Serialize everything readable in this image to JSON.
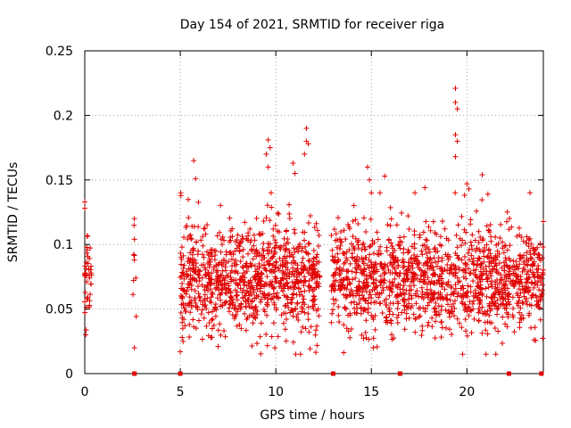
{
  "chart_data": {
    "type": "scatter",
    "title": "Day 154 of 2021, SRMTID for receiver riga",
    "xlabel": "GPS time / hours",
    "ylabel": "SRMTID / TECUs",
    "xlim": [
      0,
      24
    ],
    "ylim": [
      0,
      0.25
    ],
    "xticks": [
      0,
      5,
      10,
      15,
      20
    ],
    "xtick_labels": [
      "0",
      "5",
      "10",
      "15",
      "20"
    ],
    "yticks": [
      0,
      0.05,
      0.1,
      0.15,
      0.2,
      0.25
    ],
    "ytick_labels": [
      "0",
      "0.05",
      "0.1",
      "0.15",
      "0.2",
      "0.25"
    ],
    "grid": true,
    "marker": "plus",
    "color": "#e00000",
    "zero_markers_x": [
      2.6,
      5.0,
      13.0,
      16.5,
      22.2,
      23.9
    ],
    "segments": [
      {
        "start": 0.0,
        "end": 0.35,
        "count": 40,
        "base": 0.075,
        "spread": 0.018
      },
      {
        "start": 2.5,
        "end": 2.7,
        "count": 7,
        "base": 0.07,
        "spread": 0.025
      },
      {
        "start": 5.0,
        "end": 12.3,
        "count": 950,
        "base": 0.072,
        "spread": 0.02
      },
      {
        "start": 12.9,
        "end": 24.0,
        "count": 1350,
        "base": 0.072,
        "spread": 0.019
      }
    ],
    "highlights": [
      {
        "x": 0.0,
        "y": 0.133
      },
      {
        "x": 0.0,
        "y": 0.128
      },
      {
        "x": 0.05,
        "y": 0.03
      },
      {
        "x": 2.6,
        "y": 0.12
      },
      {
        "x": 2.6,
        "y": 0.104
      },
      {
        "x": 2.6,
        "y": 0.088
      },
      {
        "x": 2.6,
        "y": 0.02
      },
      {
        "x": 5.0,
        "y": 0.017
      },
      {
        "x": 5.1,
        "y": 0.028
      },
      {
        "x": 5.7,
        "y": 0.165
      },
      {
        "x": 5.8,
        "y": 0.151
      },
      {
        "x": 9.6,
        "y": 0.181
      },
      {
        "x": 9.5,
        "y": 0.17
      },
      {
        "x": 9.7,
        "y": 0.175
      },
      {
        "x": 9.6,
        "y": 0.16
      },
      {
        "x": 11.6,
        "y": 0.19
      },
      {
        "x": 11.6,
        "y": 0.18
      },
      {
        "x": 11.7,
        "y": 0.178
      },
      {
        "x": 11.5,
        "y": 0.17
      },
      {
        "x": 10.9,
        "y": 0.163
      },
      {
        "x": 11.0,
        "y": 0.155
      },
      {
        "x": 14.8,
        "y": 0.16
      },
      {
        "x": 14.9,
        "y": 0.15
      },
      {
        "x": 15.0,
        "y": 0.14
      },
      {
        "x": 15.1,
        "y": 0.02
      },
      {
        "x": 15.7,
        "y": 0.153
      },
      {
        "x": 17.8,
        "y": 0.144
      },
      {
        "x": 19.4,
        "y": 0.221
      },
      {
        "x": 19.4,
        "y": 0.21
      },
      {
        "x": 19.5,
        "y": 0.205
      },
      {
        "x": 19.4,
        "y": 0.185
      },
      {
        "x": 19.5,
        "y": 0.18
      },
      {
        "x": 19.4,
        "y": 0.168
      },
      {
        "x": 20.0,
        "y": 0.147
      },
      {
        "x": 20.1,
        "y": 0.143
      },
      {
        "x": 20.8,
        "y": 0.154
      },
      {
        "x": 21.1,
        "y": 0.139
      },
      {
        "x": 21.0,
        "y": 0.015
      },
      {
        "x": 23.3,
        "y": 0.14
      }
    ]
  }
}
